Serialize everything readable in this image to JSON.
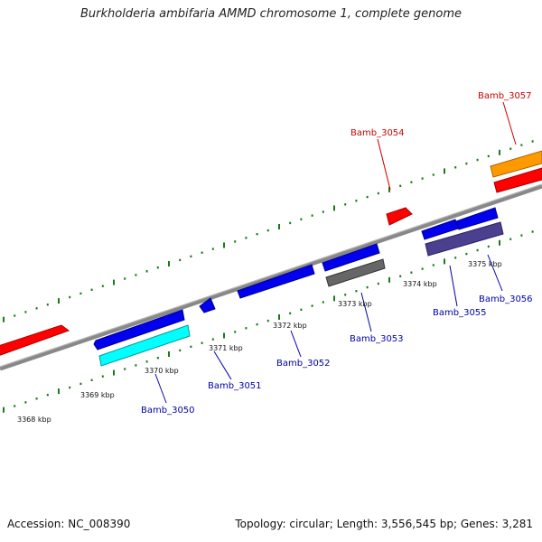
{
  "title": "Burkholderia ambifaria AMMD chromosome 1, complete genome",
  "footer": {
    "accession": "Accession: NC_008390",
    "summary": "Topology: circular; Length: 3,556,545 bp; Genes: 3,281"
  },
  "scale_labels": [
    "3368 kbp",
    "3369 kbp",
    "3370 kbp",
    "3371 kbp",
    "3372 kbp",
    "3373 kbp",
    "3374 kbp",
    "3375 kbp"
  ],
  "gene_labels": [
    {
      "text": "Bamb_3050",
      "color": "#0000aa"
    },
    {
      "text": "Bamb_3051",
      "color": "#0000aa"
    },
    {
      "text": "Bamb_3052",
      "color": "#0000aa"
    },
    {
      "text": "Bamb_3053",
      "color": "#0000aa"
    },
    {
      "text": "Bamb_3055",
      "color": "#0000aa"
    },
    {
      "text": "Bamb_3056",
      "color": "#0000aa"
    },
    {
      "text": "Bamb_3054",
      "color": "#cc0000"
    },
    {
      "text": "Bamb_3057",
      "color": "#cc0000"
    }
  ],
  "colors": {
    "backbone": "#888888",
    "ticks": "#1a7a1a",
    "forward_cds": "#ff0000",
    "reverse_cds": "#0000ee",
    "rna": "#00ffff",
    "pseudo": "#666666",
    "other": "#4b3f8f",
    "orange_feature": "#ff9900"
  }
}
